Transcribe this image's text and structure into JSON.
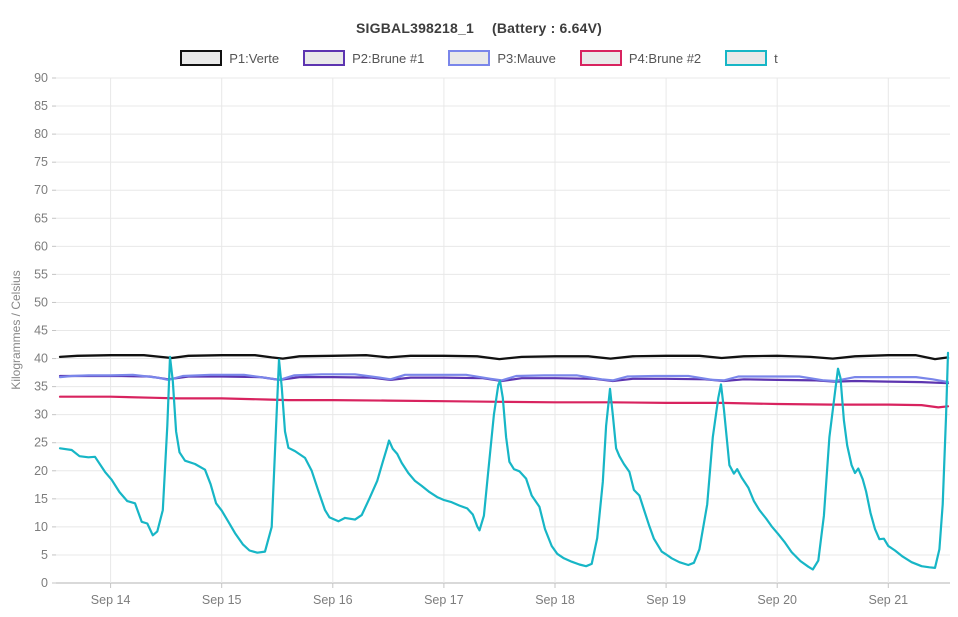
{
  "title": {
    "name": "SIGBAL398218_1",
    "battery": "(Battery : 6.64V)"
  },
  "y_axis_title": "Kilogrammes / Celsius",
  "legend": [
    {
      "label": "P1:Verte",
      "color": "#111111"
    },
    {
      "label": "P2:Brune #1",
      "color": "#5d35b0"
    },
    {
      "label": "P3:Mauve",
      "color": "#7a86ea"
    },
    {
      "label": "P4:Brune #2",
      "color": "#d8235f"
    },
    {
      "label": "t",
      "color": "#17b6c6"
    }
  ],
  "colors": {
    "grid": "#e8e8e8",
    "axis": "#b3b3b3",
    "tick": "#c4c4c4",
    "tick_text": "#7d7d7d",
    "swatch_fill": "#e9e9e9"
  },
  "chart_data": {
    "type": "line",
    "title": "SIGBAL398218_1 (Battery : 6.64V)",
    "xlabel": "",
    "ylabel": "Kilogrammes / Celsius",
    "ylim": [
      0,
      90
    ],
    "y_ticks": [
      0,
      5,
      10,
      15,
      20,
      25,
      30,
      35,
      40,
      45,
      50,
      55,
      60,
      65,
      70,
      75,
      80,
      85,
      90
    ],
    "x_ticks": [
      {
        "label": "Sep 14",
        "day": 14
      },
      {
        "label": "Sep 15",
        "day": 15
      },
      {
        "label": "Sep 16",
        "day": 16
      },
      {
        "label": "Sep 17",
        "day": 17
      },
      {
        "label": "Sep 18",
        "day": 18
      },
      {
        "label": "Sep 19",
        "day": 19
      },
      {
        "label": "Sep 20",
        "day": 20
      },
      {
        "label": "Sep 21",
        "day": 21
      }
    ],
    "xlim_days": [
      13.545,
      21.537
    ],
    "grid": true,
    "legend_position": "top",
    "series": [
      {
        "name": "P1:Verte",
        "color": "#111111",
        "width": 2.3,
        "points": [
          [
            13.545,
            40.3
          ],
          [
            13.7,
            40.5
          ],
          [
            14.0,
            40.6
          ],
          [
            14.3,
            40.6
          ],
          [
            14.45,
            40.3
          ],
          [
            14.55,
            40.1
          ],
          [
            14.7,
            40.5
          ],
          [
            15.0,
            40.6
          ],
          [
            15.3,
            40.6
          ],
          [
            15.45,
            40.2
          ],
          [
            15.55,
            40.0
          ],
          [
            15.7,
            40.4
          ],
          [
            16.0,
            40.5
          ],
          [
            16.3,
            40.6
          ],
          [
            16.5,
            40.2
          ],
          [
            16.7,
            40.5
          ],
          [
            17.0,
            40.5
          ],
          [
            17.3,
            40.4
          ],
          [
            17.5,
            39.9
          ],
          [
            17.7,
            40.3
          ],
          [
            18.0,
            40.4
          ],
          [
            18.3,
            40.4
          ],
          [
            18.5,
            40.0
          ],
          [
            18.7,
            40.4
          ],
          [
            19.0,
            40.5
          ],
          [
            19.3,
            40.5
          ],
          [
            19.5,
            40.1
          ],
          [
            19.7,
            40.4
          ],
          [
            20.0,
            40.5
          ],
          [
            20.3,
            40.3
          ],
          [
            20.5,
            40.0
          ],
          [
            20.7,
            40.4
          ],
          [
            21.0,
            40.6
          ],
          [
            21.25,
            40.6
          ],
          [
            21.42,
            39.9
          ],
          [
            21.537,
            40.2
          ]
        ]
      },
      {
        "name": "P2:Brune #1",
        "color": "#5d35b0",
        "width": 2.2,
        "points": [
          [
            13.545,
            36.9
          ],
          [
            13.8,
            36.9
          ],
          [
            14.1,
            36.9
          ],
          [
            14.35,
            36.8
          ],
          [
            14.52,
            36.3
          ],
          [
            14.7,
            36.8
          ],
          [
            15.0,
            36.8
          ],
          [
            15.35,
            36.7
          ],
          [
            15.52,
            36.2
          ],
          [
            15.7,
            36.7
          ],
          [
            16.0,
            36.7
          ],
          [
            16.35,
            36.6
          ],
          [
            16.52,
            36.2
          ],
          [
            16.7,
            36.6
          ],
          [
            17.0,
            36.6
          ],
          [
            17.35,
            36.5
          ],
          [
            17.52,
            36.0
          ],
          [
            17.7,
            36.5
          ],
          [
            18.0,
            36.5
          ],
          [
            18.35,
            36.4
          ],
          [
            18.52,
            36.0
          ],
          [
            18.7,
            36.4
          ],
          [
            19.0,
            36.4
          ],
          [
            19.35,
            36.3
          ],
          [
            19.52,
            36.0
          ],
          [
            19.7,
            36.3
          ],
          [
            20.0,
            36.2
          ],
          [
            20.35,
            36.1
          ],
          [
            20.52,
            35.9
          ],
          [
            20.7,
            36.0
          ],
          [
            21.0,
            35.9
          ],
          [
            21.3,
            35.8
          ],
          [
            21.537,
            35.6
          ]
        ]
      },
      {
        "name": "P3:Mauve",
        "color": "#7a86ea",
        "width": 2.2,
        "points": [
          [
            13.545,
            36.7
          ],
          [
            13.65,
            36.9
          ],
          [
            13.8,
            37.0
          ],
          [
            14.0,
            37.0
          ],
          [
            14.2,
            37.1
          ],
          [
            14.42,
            36.6
          ],
          [
            14.52,
            36.2
          ],
          [
            14.65,
            36.9
          ],
          [
            14.9,
            37.1
          ],
          [
            15.2,
            37.1
          ],
          [
            15.42,
            36.5
          ],
          [
            15.52,
            36.2
          ],
          [
            15.65,
            37.0
          ],
          [
            15.9,
            37.2
          ],
          [
            16.2,
            37.2
          ],
          [
            16.42,
            36.6
          ],
          [
            16.52,
            36.3
          ],
          [
            16.65,
            37.1
          ],
          [
            16.9,
            37.1
          ],
          [
            17.2,
            37.1
          ],
          [
            17.42,
            36.4
          ],
          [
            17.52,
            36.1
          ],
          [
            17.65,
            36.9
          ],
          [
            17.9,
            37.0
          ],
          [
            18.2,
            37.0
          ],
          [
            18.42,
            36.3
          ],
          [
            18.52,
            36.1
          ],
          [
            18.65,
            36.8
          ],
          [
            18.9,
            36.9
          ],
          [
            19.2,
            36.9
          ],
          [
            19.42,
            36.2
          ],
          [
            19.52,
            36.1
          ],
          [
            19.65,
            36.8
          ],
          [
            19.9,
            36.8
          ],
          [
            20.2,
            36.8
          ],
          [
            20.42,
            36.1
          ],
          [
            20.52,
            36.0
          ],
          [
            20.7,
            36.7
          ],
          [
            21.0,
            36.7
          ],
          [
            21.25,
            36.7
          ],
          [
            21.4,
            36.3
          ],
          [
            21.537,
            35.8
          ]
        ]
      },
      {
        "name": "P4:Brune #2",
        "color": "#d8235f",
        "width": 2.2,
        "points": [
          [
            13.545,
            33.2
          ],
          [
            14.0,
            33.2
          ],
          [
            14.4,
            33.0
          ],
          [
            14.6,
            32.9
          ],
          [
            15.0,
            32.9
          ],
          [
            15.4,
            32.7
          ],
          [
            15.6,
            32.6
          ],
          [
            16.0,
            32.6
          ],
          [
            16.5,
            32.5
          ],
          [
            17.0,
            32.4
          ],
          [
            17.5,
            32.3
          ],
          [
            18.0,
            32.2
          ],
          [
            18.5,
            32.2
          ],
          [
            19.0,
            32.1
          ],
          [
            19.5,
            32.1
          ],
          [
            20.0,
            31.9
          ],
          [
            20.5,
            31.8
          ],
          [
            21.0,
            31.8
          ],
          [
            21.3,
            31.7
          ],
          [
            21.45,
            31.3
          ],
          [
            21.537,
            31.5
          ]
        ]
      },
      {
        "name": "t",
        "color": "#17b6c6",
        "width": 2.2,
        "points": [
          [
            13.545,
            24.0
          ],
          [
            13.65,
            23.7
          ],
          [
            13.72,
            22.6
          ],
          [
            13.8,
            22.4
          ],
          [
            13.86,
            22.5
          ],
          [
            13.95,
            19.8
          ],
          [
            14.01,
            18.4
          ],
          [
            14.08,
            16.2
          ],
          [
            14.15,
            14.6
          ],
          [
            14.22,
            14.2
          ],
          [
            14.28,
            10.9
          ],
          [
            14.33,
            10.6
          ],
          [
            14.38,
            8.5
          ],
          [
            14.42,
            9.2
          ],
          [
            14.47,
            13.0
          ],
          [
            14.51,
            28.0
          ],
          [
            14.535,
            40.3
          ],
          [
            14.56,
            36.0
          ],
          [
            14.59,
            27.0
          ],
          [
            14.62,
            23.3
          ],
          [
            14.67,
            21.8
          ],
          [
            14.76,
            21.2
          ],
          [
            14.85,
            20.2
          ],
          [
            14.9,
            17.6
          ],
          [
            14.95,
            14.2
          ],
          [
            15.0,
            12.9
          ],
          [
            15.06,
            10.9
          ],
          [
            15.12,
            8.9
          ],
          [
            15.19,
            6.9
          ],
          [
            15.25,
            5.8
          ],
          [
            15.32,
            5.4
          ],
          [
            15.39,
            5.6
          ],
          [
            15.45,
            10.0
          ],
          [
            15.49,
            28.0
          ],
          [
            15.516,
            39.8
          ],
          [
            15.54,
            35.0
          ],
          [
            15.57,
            27.0
          ],
          [
            15.6,
            24.1
          ],
          [
            15.66,
            23.5
          ],
          [
            15.75,
            22.3
          ],
          [
            15.81,
            20.0
          ],
          [
            15.87,
            16.4
          ],
          [
            15.93,
            13.0
          ],
          [
            15.97,
            11.7
          ],
          [
            16.05,
            11.0
          ],
          [
            16.11,
            11.6
          ],
          [
            16.2,
            11.3
          ],
          [
            16.26,
            12.1
          ],
          [
            16.33,
            15.1
          ],
          [
            16.4,
            18.2
          ],
          [
            16.45,
            21.6
          ],
          [
            16.49,
            24.2
          ],
          [
            16.506,
            25.4
          ],
          [
            16.54,
            23.9
          ],
          [
            16.58,
            23.0
          ],
          [
            16.62,
            21.4
          ],
          [
            16.68,
            19.6
          ],
          [
            16.74,
            18.2
          ],
          [
            16.8,
            17.3
          ],
          [
            16.87,
            16.2
          ],
          [
            16.94,
            15.3
          ],
          [
            17.0,
            14.8
          ],
          [
            17.07,
            14.4
          ],
          [
            17.14,
            13.8
          ],
          [
            17.21,
            13.3
          ],
          [
            17.26,
            12.2
          ],
          [
            17.3,
            10.1
          ],
          [
            17.32,
            9.4
          ],
          [
            17.36,
            12.0
          ],
          [
            17.4,
            20.0
          ],
          [
            17.45,
            30.0
          ],
          [
            17.49,
            35.3
          ],
          [
            17.505,
            36.0
          ],
          [
            17.53,
            33.0
          ],
          [
            17.56,
            26.0
          ],
          [
            17.59,
            21.6
          ],
          [
            17.63,
            20.3
          ],
          [
            17.68,
            19.9
          ],
          [
            17.74,
            18.6
          ],
          [
            17.79,
            15.6
          ],
          [
            17.86,
            13.6
          ],
          [
            17.91,
            9.6
          ],
          [
            17.97,
            6.6
          ],
          [
            18.02,
            5.2
          ],
          [
            18.08,
            4.4
          ],
          [
            18.15,
            3.8
          ],
          [
            18.22,
            3.3
          ],
          [
            18.28,
            3.0
          ],
          [
            18.33,
            3.4
          ],
          [
            18.38,
            8.0
          ],
          [
            18.43,
            18.0
          ],
          [
            18.46,
            28.0
          ],
          [
            18.495,
            34.6
          ],
          [
            18.52,
            30.0
          ],
          [
            18.55,
            24.0
          ],
          [
            18.58,
            22.6
          ],
          [
            18.62,
            21.2
          ],
          [
            18.67,
            19.8
          ],
          [
            18.71,
            16.6
          ],
          [
            18.76,
            15.6
          ],
          [
            18.8,
            13.1
          ],
          [
            18.85,
            10.1
          ],
          [
            18.89,
            7.9
          ],
          [
            18.96,
            5.6
          ],
          [
            19.0,
            5.1
          ],
          [
            19.05,
            4.4
          ],
          [
            19.12,
            3.7
          ],
          [
            19.2,
            3.2
          ],
          [
            19.25,
            3.6
          ],
          [
            19.3,
            6.0
          ],
          [
            19.37,
            14.0
          ],
          [
            19.42,
            26.0
          ],
          [
            19.47,
            33.0
          ],
          [
            19.494,
            35.4
          ],
          [
            19.52,
            31.0
          ],
          [
            19.55,
            25.0
          ],
          [
            19.57,
            21.0
          ],
          [
            19.61,
            19.5
          ],
          [
            19.64,
            20.3
          ],
          [
            19.68,
            18.8
          ],
          [
            19.74,
            17.0
          ],
          [
            19.79,
            14.6
          ],
          [
            19.84,
            13.0
          ],
          [
            19.9,
            11.5
          ],
          [
            19.95,
            10.1
          ],
          [
            20.01,
            8.7
          ],
          [
            20.07,
            7.2
          ],
          [
            20.13,
            5.5
          ],
          [
            20.21,
            3.9
          ],
          [
            20.28,
            2.9
          ],
          [
            20.32,
            2.4
          ],
          [
            20.37,
            4.0
          ],
          [
            20.42,
            12.0
          ],
          [
            20.47,
            26.0
          ],
          [
            20.52,
            34.0
          ],
          [
            20.547,
            38.2
          ],
          [
            20.57,
            36.5
          ],
          [
            20.6,
            29.0
          ],
          [
            20.63,
            24.5
          ],
          [
            20.67,
            21.0
          ],
          [
            20.7,
            19.6
          ],
          [
            20.73,
            20.4
          ],
          [
            20.77,
            18.5
          ],
          [
            20.8,
            16.3
          ],
          [
            20.84,
            12.5
          ],
          [
            20.88,
            9.6
          ],
          [
            20.92,
            7.8
          ],
          [
            20.96,
            7.9
          ],
          [
            21.0,
            6.6
          ],
          [
            21.06,
            5.8
          ],
          [
            21.13,
            4.7
          ],
          [
            21.21,
            3.7
          ],
          [
            21.3,
            3.0
          ],
          [
            21.37,
            2.8
          ],
          [
            21.42,
            2.7
          ],
          [
            21.46,
            6.0
          ],
          [
            21.49,
            14.0
          ],
          [
            21.52,
            30.0
          ],
          [
            21.537,
            41.0
          ]
        ]
      }
    ]
  }
}
